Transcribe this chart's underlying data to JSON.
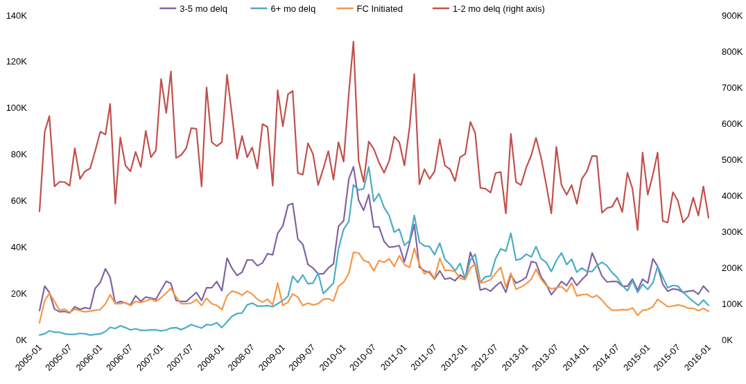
{
  "chart_data": {
    "type": "line",
    "legend": "top",
    "grid": false,
    "marker": "none",
    "line_style": "solid",
    "x": [
      "2005-01",
      "2005-02",
      "2005-03",
      "2005-04",
      "2005-05",
      "2005-06",
      "2005-07",
      "2005-08",
      "2005-09",
      "2005-10",
      "2005-11",
      "2005-12",
      "2006-01",
      "2006-02",
      "2006-03",
      "2006-04",
      "2006-05",
      "2006-06",
      "2006-07",
      "2006-08",
      "2006-09",
      "2006-10",
      "2006-11",
      "2006-12",
      "2007-01",
      "2007-02",
      "2007-03",
      "2007-04",
      "2007-05",
      "2007-06",
      "2007-07",
      "2007-08",
      "2007-09",
      "2007-10",
      "2007-11",
      "2007-12",
      "2008-01",
      "2008-02",
      "2008-03",
      "2008-04",
      "2008-05",
      "2008-06",
      "2008-07",
      "2008-08",
      "2008-09",
      "2008-10",
      "2008-11",
      "2008-12",
      "2009-01",
      "2009-02",
      "2009-03",
      "2009-04",
      "2009-05",
      "2009-06",
      "2009-07",
      "2009-08",
      "2009-09",
      "2009-10",
      "2009-11",
      "2009-12",
      "2010-01",
      "2010-02",
      "2010-03",
      "2010-04",
      "2010-05",
      "2010-06",
      "2010-07",
      "2010-08",
      "2010-09",
      "2010-10",
      "2010-11",
      "2010-12",
      "2011-01",
      "2011-02",
      "2011-03",
      "2011-04",
      "2011-05",
      "2011-06",
      "2011-07",
      "2011-08",
      "2011-09",
      "2011-10",
      "2011-11",
      "2011-12",
      "2012-01",
      "2012-02",
      "2012-03",
      "2012-04",
      "2012-05",
      "2012-06",
      "2012-07",
      "2012-08",
      "2012-09",
      "2012-10",
      "2012-11",
      "2012-12",
      "2013-01",
      "2013-02",
      "2013-03",
      "2013-04",
      "2013-05",
      "2013-06",
      "2013-07",
      "2013-08",
      "2013-09",
      "2013-10",
      "2013-11",
      "2013-12",
      "2014-01",
      "2014-02",
      "2014-03",
      "2014-04",
      "2014-05",
      "2014-06",
      "2014-07",
      "2014-08",
      "2014-09",
      "2014-10",
      "2014-11",
      "2014-12",
      "2015-01",
      "2015-02",
      "2015-03",
      "2015-04",
      "2015-05",
      "2015-06",
      "2015-07",
      "2015-08",
      "2015-09",
      "2015-10",
      "2015-11",
      "2015-12",
      "2016-01"
    ],
    "xlim": [
      "2005-01",
      "2016-01"
    ],
    "xticks": [
      "2005-01",
      "2005-07",
      "2006-01",
      "2006-07",
      "2007-01",
      "2007-07",
      "2008-01",
      "2008-07",
      "2009-01",
      "2009-07",
      "2010-01",
      "2010-07",
      "2011-01",
      "2011-07",
      "2012-01",
      "2012-07",
      "2013-01",
      "2013-07",
      "2014-01",
      "2014-07",
      "2015-01",
      "2015-07",
      "2016-01"
    ],
    "ylim": [
      0,
      140
    ],
    "yticks": [
      {
        "value": 0,
        "label": "0K"
      },
      {
        "value": 20,
        "label": "20K"
      },
      {
        "value": 40,
        "label": "40K"
      },
      {
        "value": 60,
        "label": "60K"
      },
      {
        "value": 80,
        "label": "80K"
      },
      {
        "value": 100,
        "label": "100K"
      },
      {
        "value": 120,
        "label": "120K"
      },
      {
        "value": 140,
        "label": "140K"
      }
    ],
    "y2lim": [
      0,
      900
    ],
    "y2ticks": [
      {
        "value": 0,
        "label": "0K"
      },
      {
        "value": 100,
        "label": "100K"
      },
      {
        "value": 200,
        "label": "200K"
      },
      {
        "value": 300,
        "label": "300K"
      },
      {
        "value": 400,
        "label": "400K"
      },
      {
        "value": 500,
        "label": "500K"
      },
      {
        "value": 600,
        "label": "600K"
      },
      {
        "value": 700,
        "label": "700K"
      },
      {
        "value": 800,
        "label": "800K"
      },
      {
        "value": 900,
        "label": "900K"
      }
    ],
    "series": [
      {
        "name": "3-5 mo delq",
        "color": "#8064a2",
        "values": [
          12.5,
          23.1,
          20.4,
          13.2,
          12.0,
          12.2,
          11.5,
          14.2,
          13.0,
          13.8,
          13.3,
          22.1,
          24.7,
          30.6,
          26.9,
          15.5,
          16.5,
          15.8,
          15.0,
          18.9,
          16.5,
          18.4,
          17.9,
          17.4,
          21.4,
          25.2,
          24.2,
          16.9,
          16.5,
          16.5,
          18.4,
          20.4,
          16.9,
          22.4,
          22.4,
          25.1,
          21.1,
          35.2,
          30.9,
          27.7,
          29.1,
          34.4,
          34.4,
          31.9,
          33.1,
          37.1,
          36.6,
          45.9,
          49.1,
          58.0,
          58.8,
          43.4,
          41.1,
          32.4,
          30.9,
          28.4,
          28.4,
          30.9,
          32.7,
          48.9,
          51.3,
          69.3,
          74.6,
          60.1,
          55.8,
          62.6,
          48.6,
          48.7,
          42.4,
          39.9,
          40.1,
          40.6,
          33.6,
          41.9,
          49.7,
          31.2,
          29.7,
          28.9,
          26.1,
          29.7,
          26.1,
          26.6,
          25.4,
          27.9,
          26.4,
          37.7,
          31.9,
          21.4,
          22.1,
          20.9,
          23.1,
          24.9,
          20.4,
          27.9,
          24.4,
          25.4,
          26.9,
          33.7,
          33.2,
          27.1,
          23.9,
          19.4,
          22.1,
          25.1,
          23.4,
          26.9,
          23.4,
          25.9,
          28.1,
          37.4,
          32.9,
          27.4,
          24.9,
          25.1,
          25.1,
          23.1,
          23.1,
          26.1,
          21.4,
          26.1,
          24.4,
          34.9,
          31.7,
          23.9,
          20.9,
          21.9,
          21.6,
          20.4,
          20.9,
          21.2,
          19.6,
          23.1,
          20.7
        ]
      },
      {
        "name": "6+ mo delq",
        "color": "#4bacc6",
        "values": [
          2.0,
          2.5,
          3.8,
          3.2,
          3.2,
          2.5,
          2.3,
          2.3,
          2.7,
          2.5,
          2.0,
          2.3,
          2.5,
          3.5,
          5.3,
          4.8,
          6.0,
          5.2,
          4.2,
          4.7,
          4.0,
          4.0,
          4.2,
          4.2,
          3.8,
          4.2,
          5.0,
          5.2,
          4.3,
          5.3,
          6.5,
          5.7,
          5.0,
          6.5,
          6.3,
          7.3,
          5.2,
          7.7,
          10.0,
          11.3,
          11.5,
          15.0,
          15.8,
          14.5,
          14.5,
          14.7,
          14.2,
          15.5,
          16.9,
          18.7,
          27.4,
          24.7,
          27.9,
          24.1,
          24.4,
          28.7,
          19.9,
          22.1,
          24.4,
          39.1,
          47.7,
          51.0,
          66.8,
          64.6,
          65.1,
          74.6,
          59.6,
          63.0,
          57.0,
          53.6,
          46.4,
          47.7,
          40.7,
          42.7,
          53.6,
          42.1,
          40.4,
          40.2,
          36.7,
          41.7,
          34.6,
          32.6,
          29.7,
          32.9,
          26.4,
          34.4,
          36.9,
          24.7,
          27.2,
          27.4,
          34.9,
          39.2,
          38.2,
          45.9,
          34.3,
          34.9,
          36.9,
          35.7,
          40.2,
          34.9,
          33.4,
          29.4,
          34.1,
          37.4,
          32.4,
          34.7,
          29.1,
          30.9,
          29.4,
          29.4,
          31.9,
          33.4,
          31.9,
          28.9,
          26.9,
          23.4,
          21.1,
          25.4,
          20.4,
          23.9,
          21.7,
          24.6,
          31.6,
          26.9,
          22.4,
          23.4,
          23.1,
          20.4,
          18.4,
          16.5,
          14.8,
          17.1,
          14.8
        ]
      },
      {
        "name": "FC Initiated",
        "color": "#f79646",
        "values": [
          7.3,
          16.9,
          19.9,
          16.5,
          12.7,
          13.2,
          11.7,
          13.2,
          12.5,
          12.0,
          12.3,
          12.7,
          13.0,
          15.5,
          19.4,
          15.5,
          15.5,
          16.0,
          14.7,
          16.5,
          16.0,
          16.7,
          17.6,
          16.5,
          18.1,
          20.1,
          22.1,
          18.4,
          15.5,
          15.5,
          15.7,
          17.4,
          14.7,
          17.9,
          15.5,
          14.8,
          13.0,
          18.9,
          20.9,
          20.4,
          19.2,
          20.9,
          19.7,
          17.4,
          16.2,
          17.4,
          15.0,
          24.4,
          14.8,
          16.2,
          19.7,
          18.4,
          14.7,
          15.8,
          15.0,
          15.5,
          17.4,
          17.7,
          16.7,
          23.1,
          24.7,
          28.7,
          37.7,
          37.4,
          34.2,
          33.4,
          29.7,
          34.1,
          33.4,
          34.9,
          31.6,
          36.2,
          32.4,
          31.2,
          39.4,
          32.4,
          28.4,
          29.6,
          26.4,
          35.1,
          29.9,
          29.9,
          29.4,
          26.4,
          25.9,
          30.9,
          32.7,
          24.4,
          24.9,
          25.9,
          28.6,
          31.2,
          22.7,
          28.7,
          21.7,
          22.7,
          24.1,
          26.1,
          30.4,
          26.1,
          23.4,
          21.9,
          22.4,
          22.9,
          20.7,
          24.4,
          18.9,
          19.4,
          19.6,
          18.2,
          19.1,
          17.1,
          14.5,
          12.7,
          12.7,
          13.0,
          12.8,
          13.7,
          10.5,
          12.7,
          13.0,
          14.2,
          17.4,
          15.8,
          14.2,
          14.5,
          15.0,
          14.5,
          13.5,
          13.5,
          12.5,
          13.5,
          12.2
        ]
      },
      {
        "name": "1-2 mo delq (right axis)",
        "color": "#c0504d",
        "axis": "y2",
        "values": [
          356,
          576,
          620,
          425,
          438,
          437,
          427,
          531,
          446,
          467,
          475,
          523,
          577,
          569,
          654,
          377,
          561,
          483,
          467,
          521,
          479,
          579,
          506,
          525,
          723,
          629,
          744,
          504,
          512,
          531,
          587,
          585,
          425,
          700,
          548,
          537,
          548,
          735,
          625,
          502,
          565,
          506,
          533,
          475,
          598,
          590,
          427,
          692,
          592,
          681,
          690,
          462,
          458,
          545,
          515,
          429,
          475,
          523,
          444,
          548,
          494,
          683,
          827,
          496,
          438,
          550,
          529,
          492,
          463,
          496,
          563,
          548,
          483,
          590,
          737,
          431,
          473,
          446,
          467,
          556,
          483,
          473,
          440,
          506,
          515,
          604,
          573,
          421,
          419,
          408,
          462,
          465,
          350,
          571,
          437,
          429,
          477,
          512,
          560,
          504,
          431,
          350,
          535,
          429,
          402,
          429,
          377,
          446,
          467,
          510,
          509,
          352,
          365,
          369,
          394,
          354,
          463,
          419,
          304,
          519,
          402,
          458,
          519,
          329,
          325,
          409,
          385,
          325,
          342,
          394,
          344,
          425,
          338
        ]
      }
    ]
  }
}
